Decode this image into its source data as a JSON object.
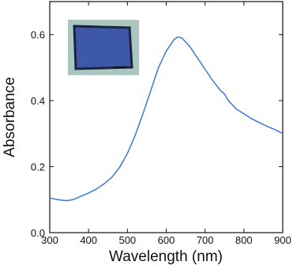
{
  "chart_data": {
    "type": "line",
    "x_label": "Wavelength (nm)",
    "y_label": "Absorbance",
    "x": [
      300,
      320,
      340,
      350,
      360,
      380,
      400,
      420,
      440,
      460,
      480,
      500,
      520,
      540,
      560,
      580,
      600,
      620,
      630,
      640,
      660,
      680,
      700,
      720,
      740,
      750,
      760,
      780,
      800,
      820,
      840,
      860,
      880,
      900
    ],
    "series": [
      {
        "name": "Absorbance",
        "color": "#3c78d8",
        "values": [
          0.105,
          0.1,
          0.097,
          0.098,
          0.1,
          0.11,
          0.12,
          0.132,
          0.148,
          0.168,
          0.198,
          0.24,
          0.295,
          0.36,
          0.43,
          0.5,
          0.55,
          0.585,
          0.593,
          0.59,
          0.565,
          0.53,
          0.495,
          0.46,
          0.43,
          0.42,
          0.4,
          0.375,
          0.36,
          0.345,
          0.333,
          0.322,
          0.312,
          0.3
        ]
      }
    ],
    "xlim": [
      300,
      900
    ],
    "ylim": [
      0,
      0.7
    ],
    "xticks": [
      300,
      400,
      500,
      600,
      700,
      800,
      900
    ],
    "yticks": [
      {
        "value": 0,
        "label": "0.0"
      },
      0.2,
      0.4,
      0.6
    ]
  }
}
